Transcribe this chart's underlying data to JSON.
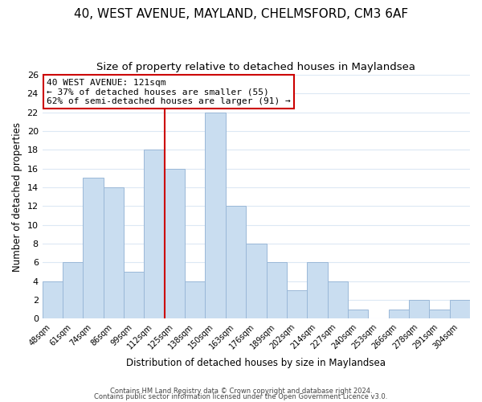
{
  "title": "40, WEST AVENUE, MAYLAND, CHELMSFORD, CM3 6AF",
  "subtitle": "Size of property relative to detached houses in Maylandsea",
  "bar_labels": [
    "48sqm",
    "61sqm",
    "74sqm",
    "86sqm",
    "99sqm",
    "112sqm",
    "125sqm",
    "138sqm",
    "150sqm",
    "163sqm",
    "176sqm",
    "189sqm",
    "202sqm",
    "214sqm",
    "227sqm",
    "240sqm",
    "253sqm",
    "266sqm",
    "278sqm",
    "291sqm",
    "304sqm"
  ],
  "bar_values": [
    4,
    6,
    15,
    14,
    5,
    18,
    16,
    4,
    22,
    12,
    8,
    6,
    3,
    6,
    4,
    1,
    0,
    1,
    2,
    1,
    2
  ],
  "bar_color": "#c9ddf0",
  "bar_edge_color": "#9ab8d8",
  "red_line_index": 6.5,
  "red_line_color": "#cc0000",
  "ylim": [
    0,
    26
  ],
  "yticks": [
    0,
    2,
    4,
    6,
    8,
    10,
    12,
    14,
    16,
    18,
    20,
    22,
    24,
    26
  ],
  "ylabel": "Number of detached properties",
  "xlabel": "Distribution of detached houses by size in Maylandsea",
  "annotation_title": "40 WEST AVENUE: 121sqm",
  "annotation_line1": "← 37% of detached houses are smaller (55)",
  "annotation_line2": "62% of semi-detached houses are larger (91) →",
  "annotation_box_color": "#cc0000",
  "footer_line1": "Contains HM Land Registry data © Crown copyright and database right 2024.",
  "footer_line2": "Contains public sector information licensed under the Open Government Licence v3.0.",
  "background_color": "#ffffff",
  "grid_color": "#dce8f4",
  "title_fontsize": 11,
  "subtitle_fontsize": 9.5
}
